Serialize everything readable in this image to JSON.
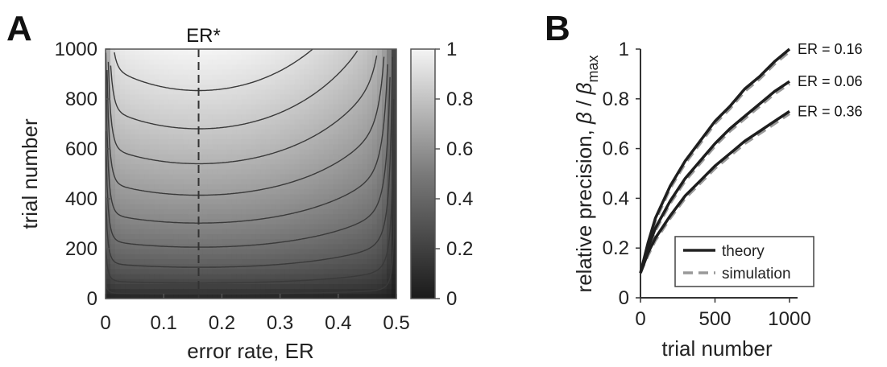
{
  "chart_data": [
    {
      "panel": "A",
      "type": "heatmap",
      "xlabel": "error rate, ER",
      "ylabel": "trial number",
      "xlim": [
        0,
        0.5
      ],
      "ylim": [
        0,
        1000
      ],
      "xticks": [
        "0",
        "0.1",
        "0.2",
        "0.3",
        "0.4",
        "0.5"
      ],
      "yticks": [
        "0",
        "200",
        "400",
        "600",
        "800",
        "1000"
      ],
      "colorbar": {
        "range": [
          0,
          1
        ],
        "ticks": [
          "0",
          "0.2",
          "0.4",
          "0.6",
          "0.8",
          "1"
        ]
      },
      "contour_levels": [
        0.1,
        0.2,
        0.3,
        0.4,
        0.5,
        0.6,
        0.7,
        0.8,
        0.9
      ],
      "optimum_line": {
        "label": "ER*",
        "x": 0.16
      }
    },
    {
      "panel": "B",
      "type": "line",
      "xlabel": "trial number",
      "ylabel_prefix": "relative precision, ",
      "ylabel_beta": "β",
      "ylabel_sep": " / ",
      "ylabel_sub": "max",
      "xlim": [
        0,
        1000
      ],
      "ylim": [
        0,
        1
      ],
      "xticks": [
        "0",
        "500",
        "1000"
      ],
      "yticks": [
        "0",
        "0.2",
        "0.4",
        "0.6",
        "0.8",
        "1"
      ],
      "legend": {
        "placement": "bottom-right",
        "entries": [
          "theory",
          "simulation"
        ]
      },
      "series": [
        {
          "label": "ER = 0.16",
          "x": [
            0,
            50,
            100,
            200,
            300,
            400,
            500,
            600,
            700,
            800,
            900,
            1000
          ],
          "theory": [
            0.1,
            0.22,
            0.32,
            0.45,
            0.55,
            0.63,
            0.71,
            0.77,
            0.84,
            0.89,
            0.95,
            1.0
          ],
          "simulation": [
            0.1,
            0.21,
            0.31,
            0.44,
            0.54,
            0.62,
            0.7,
            0.76,
            0.83,
            0.88,
            0.94,
            0.99
          ]
        },
        {
          "label": "ER = 0.06",
          "x": [
            0,
            50,
            100,
            200,
            300,
            400,
            500,
            600,
            700,
            800,
            900,
            1000
          ],
          "theory": [
            0.1,
            0.2,
            0.28,
            0.39,
            0.48,
            0.55,
            0.62,
            0.68,
            0.73,
            0.78,
            0.83,
            0.87
          ],
          "simulation": [
            0.1,
            0.19,
            0.27,
            0.38,
            0.47,
            0.54,
            0.61,
            0.67,
            0.72,
            0.77,
            0.82,
            0.86
          ]
        },
        {
          "label": "ER = 0.36",
          "x": [
            0,
            50,
            100,
            200,
            300,
            400,
            500,
            600,
            700,
            800,
            900,
            1000
          ],
          "theory": [
            0.1,
            0.18,
            0.24,
            0.33,
            0.41,
            0.47,
            0.53,
            0.58,
            0.63,
            0.67,
            0.71,
            0.75
          ],
          "simulation": [
            0.1,
            0.17,
            0.23,
            0.32,
            0.4,
            0.46,
            0.52,
            0.57,
            0.62,
            0.66,
            0.7,
            0.74
          ]
        }
      ]
    }
  ]
}
